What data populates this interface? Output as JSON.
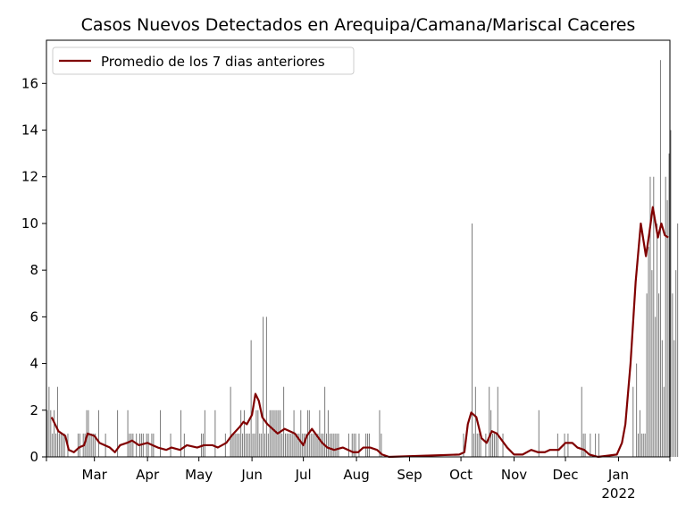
{
  "chart_data": {
    "type": "bar",
    "title": "Casos Nuevos Detectados en Arequipa/Camana/Mariscal Caceres",
    "xlabel": "",
    "ylabel": "",
    "x_range": [
      "2021-02-01",
      "2022-01-31"
    ],
    "ylim": [
      0,
      17.85
    ],
    "y_ticks": [
      0,
      2,
      4,
      6,
      8,
      10,
      12,
      14,
      16
    ],
    "x_ticks": [
      {
        "date": "2021-03-01",
        "label": "Mar",
        "sublabel": ""
      },
      {
        "date": "2021-04-01",
        "label": "Apr",
        "sublabel": ""
      },
      {
        "date": "2021-05-01",
        "label": "May",
        "sublabel": ""
      },
      {
        "date": "2021-06-01",
        "label": "Jun",
        "sublabel": ""
      },
      {
        "date": "2021-07-01",
        "label": "Jul",
        "sublabel": ""
      },
      {
        "date": "2021-08-01",
        "label": "Aug",
        "sublabel": ""
      },
      {
        "date": "2021-09-01",
        "label": "Sep",
        "sublabel": ""
      },
      {
        "date": "2021-10-01",
        "label": "Oct",
        "sublabel": ""
      },
      {
        "date": "2021-11-01",
        "label": "Nov",
        "sublabel": ""
      },
      {
        "date": "2021-12-01",
        "label": "Dec",
        "sublabel": ""
      },
      {
        "date": "2022-01-01",
        "label": "Jan",
        "sublabel": "2022"
      }
    ],
    "grid": false,
    "legend_position": "top-left",
    "bar_color": "#808080",
    "line_color": "#800000",
    "series": [
      {
        "name": "",
        "kind": "bar",
        "start_date": "2021-02-01",
        "values": [
          2,
          3,
          2,
          1,
          2,
          1,
          3,
          1,
          1,
          1,
          1,
          0,
          1,
          0,
          0,
          0,
          0,
          0,
          1,
          1,
          0,
          1,
          1,
          2,
          2,
          1,
          1,
          1,
          1,
          0,
          2,
          0,
          0,
          0,
          1,
          0,
          0,
          0,
          0,
          0,
          0,
          2,
          0,
          0,
          0,
          0,
          0,
          2,
          1,
          1,
          1,
          0,
          1,
          0,
          1,
          1,
          1,
          0,
          1,
          1,
          0,
          1,
          1,
          0,
          0,
          0,
          2,
          0,
          0,
          0,
          0,
          0,
          1,
          0,
          0,
          0,
          0,
          0,
          2,
          0,
          1,
          0,
          0,
          0,
          0,
          0,
          0,
          0,
          0,
          0,
          1,
          1,
          2,
          0,
          0,
          0,
          0,
          0,
          2,
          0,
          0,
          0,
          0,
          0,
          1,
          0,
          0,
          3,
          1,
          1,
          1,
          1,
          1,
          2,
          1,
          2,
          1,
          1,
          1,
          5,
          1,
          1,
          2,
          2,
          1,
          1,
          6,
          1,
          6,
          1,
          2,
          2,
          2,
          2,
          2,
          2,
          2,
          1,
          3,
          1,
          1,
          1,
          1,
          1,
          2,
          1,
          1,
          1,
          2,
          1,
          1,
          1,
          2,
          2,
          1,
          1,
          1,
          1,
          1,
          2,
          1,
          1,
          3,
          1,
          2,
          1,
          1,
          1,
          1,
          1,
          1,
          0,
          0,
          0,
          0,
          0,
          1,
          0,
          1,
          1,
          1,
          0,
          1,
          0,
          0,
          0,
          1,
          1,
          1,
          0,
          0,
          0,
          0,
          0,
          2,
          1,
          0,
          0,
          0,
          0,
          0,
          0,
          0,
          0,
          0,
          0,
          0,
          0,
          0,
          0,
          0,
          0,
          0,
          0,
          0,
          0,
          0,
          0,
          0,
          0,
          0,
          0,
          0,
          0,
          0,
          0,
          0,
          0,
          0,
          0,
          0,
          0,
          0,
          0,
          0,
          0,
          0,
          0,
          0,
          0,
          0,
          0,
          0,
          1,
          0,
          0,
          0,
          0,
          10,
          1,
          3,
          1,
          1,
          1,
          0,
          0,
          1,
          0,
          3,
          2,
          1,
          1,
          1,
          3,
          0,
          0,
          1,
          0,
          0,
          0,
          0,
          0,
          0,
          0,
          0,
          0,
          0,
          0,
          0,
          0,
          0,
          0,
          0,
          0,
          0,
          0,
          0,
          2,
          0,
          0,
          0,
          0,
          0,
          0,
          0,
          0,
          0,
          0,
          1,
          0,
          0,
          0,
          1,
          0,
          1,
          0,
          0,
          0,
          0,
          0,
          0,
          0,
          3,
          1,
          1,
          0,
          0,
          1,
          0,
          0,
          1,
          0,
          1,
          0,
          0,
          0,
          0,
          0,
          0,
          0,
          0,
          0,
          0,
          0,
          0,
          0,
          0,
          0,
          0,
          0,
          0,
          0,
          3,
          0,
          4,
          1,
          2,
          1,
          1,
          1,
          7,
          9,
          12,
          8,
          12,
          6,
          10,
          7,
          17,
          5,
          3,
          12,
          11,
          13,
          14,
          7,
          5,
          8,
          10
        ]
      },
      {
        "name": "Promedio de los 7 dias anteriores",
        "kind": "line",
        "points": [
          [
            "2021-02-04",
            1.7
          ],
          [
            "2021-02-06",
            1.4
          ],
          [
            "2021-02-08",
            1.1
          ],
          [
            "2021-02-12",
            0.9
          ],
          [
            "2021-02-14",
            0.3
          ],
          [
            "2021-02-17",
            0.2
          ],
          [
            "2021-02-20",
            0.4
          ],
          [
            "2021-02-23",
            0.5
          ],
          [
            "2021-02-25",
            1.0
          ],
          [
            "2021-03-01",
            0.9
          ],
          [
            "2021-03-04",
            0.6
          ],
          [
            "2021-03-10",
            0.4
          ],
          [
            "2021-03-13",
            0.2
          ],
          [
            "2021-03-16",
            0.5
          ],
          [
            "2021-03-20",
            0.6
          ],
          [
            "2021-03-23",
            0.7
          ],
          [
            "2021-03-27",
            0.5
          ],
          [
            "2021-04-01",
            0.6
          ],
          [
            "2021-04-04",
            0.5
          ],
          [
            "2021-04-07",
            0.4
          ],
          [
            "2021-04-12",
            0.3
          ],
          [
            "2021-04-15",
            0.4
          ],
          [
            "2021-04-20",
            0.3
          ],
          [
            "2021-04-24",
            0.5
          ],
          [
            "2021-04-30",
            0.4
          ],
          [
            "2021-05-04",
            0.5
          ],
          [
            "2021-05-09",
            0.5
          ],
          [
            "2021-05-12",
            0.4
          ],
          [
            "2021-05-17",
            0.6
          ],
          [
            "2021-05-20",
            0.9
          ],
          [
            "2021-05-25",
            1.3
          ],
          [
            "2021-05-27",
            1.5
          ],
          [
            "2021-05-29",
            1.4
          ],
          [
            "2021-06-01",
            1.8
          ],
          [
            "2021-06-03",
            2.7
          ],
          [
            "2021-06-05",
            2.4
          ],
          [
            "2021-06-07",
            1.7
          ],
          [
            "2021-06-10",
            1.4
          ],
          [
            "2021-06-13",
            1.2
          ],
          [
            "2021-06-16",
            1.0
          ],
          [
            "2021-06-20",
            1.2
          ],
          [
            "2021-06-23",
            1.1
          ],
          [
            "2021-06-26",
            1.0
          ],
          [
            "2021-06-29",
            0.7
          ],
          [
            "2021-07-01",
            0.5
          ],
          [
            "2021-07-03",
            0.9
          ],
          [
            "2021-07-06",
            1.2
          ],
          [
            "2021-07-09",
            0.9
          ],
          [
            "2021-07-12",
            0.6
          ],
          [
            "2021-07-15",
            0.4
          ],
          [
            "2021-07-19",
            0.3
          ],
          [
            "2021-07-24",
            0.4
          ],
          [
            "2021-07-27",
            0.3
          ],
          [
            "2021-07-30",
            0.2
          ],
          [
            "2021-08-02",
            0.2
          ],
          [
            "2021-08-05",
            0.4
          ],
          [
            "2021-08-09",
            0.4
          ],
          [
            "2021-08-13",
            0.3
          ],
          [
            "2021-08-16",
            0.1
          ],
          [
            "2021-08-20",
            0.0
          ],
          [
            "2021-09-30",
            0.1
          ],
          [
            "2021-10-03",
            0.2
          ],
          [
            "2021-10-05",
            1.4
          ],
          [
            "2021-10-07",
            1.9
          ],
          [
            "2021-10-10",
            1.7
          ],
          [
            "2021-10-13",
            0.8
          ],
          [
            "2021-10-16",
            0.6
          ],
          [
            "2021-10-19",
            1.1
          ],
          [
            "2021-10-22",
            1.0
          ],
          [
            "2021-10-25",
            0.7
          ],
          [
            "2021-10-28",
            0.4
          ],
          [
            "2021-11-01",
            0.1
          ],
          [
            "2021-11-06",
            0.1
          ],
          [
            "2021-11-11",
            0.3
          ],
          [
            "2021-11-15",
            0.2
          ],
          [
            "2021-11-19",
            0.2
          ],
          [
            "2021-11-22",
            0.3
          ],
          [
            "2021-11-27",
            0.3
          ],
          [
            "2021-12-01",
            0.6
          ],
          [
            "2021-12-05",
            0.6
          ],
          [
            "2021-12-08",
            0.4
          ],
          [
            "2021-12-12",
            0.3
          ],
          [
            "2021-12-15",
            0.1
          ],
          [
            "2021-12-20",
            0.0
          ],
          [
            "2021-12-31",
            0.1
          ],
          [
            "2022-01-03",
            0.6
          ],
          [
            "2022-01-05",
            1.4
          ],
          [
            "2022-01-08",
            4.0
          ],
          [
            "2022-01-11",
            7.5
          ],
          [
            "2022-01-14",
            10.0
          ],
          [
            "2022-01-17",
            8.6
          ],
          [
            "2022-01-19",
            9.6
          ],
          [
            "2022-01-21",
            10.7
          ],
          [
            "2022-01-24",
            9.4
          ],
          [
            "2022-01-26",
            10.0
          ],
          [
            "2022-01-28",
            9.5
          ],
          [
            "2022-01-30",
            9.4
          ]
        ]
      }
    ]
  }
}
